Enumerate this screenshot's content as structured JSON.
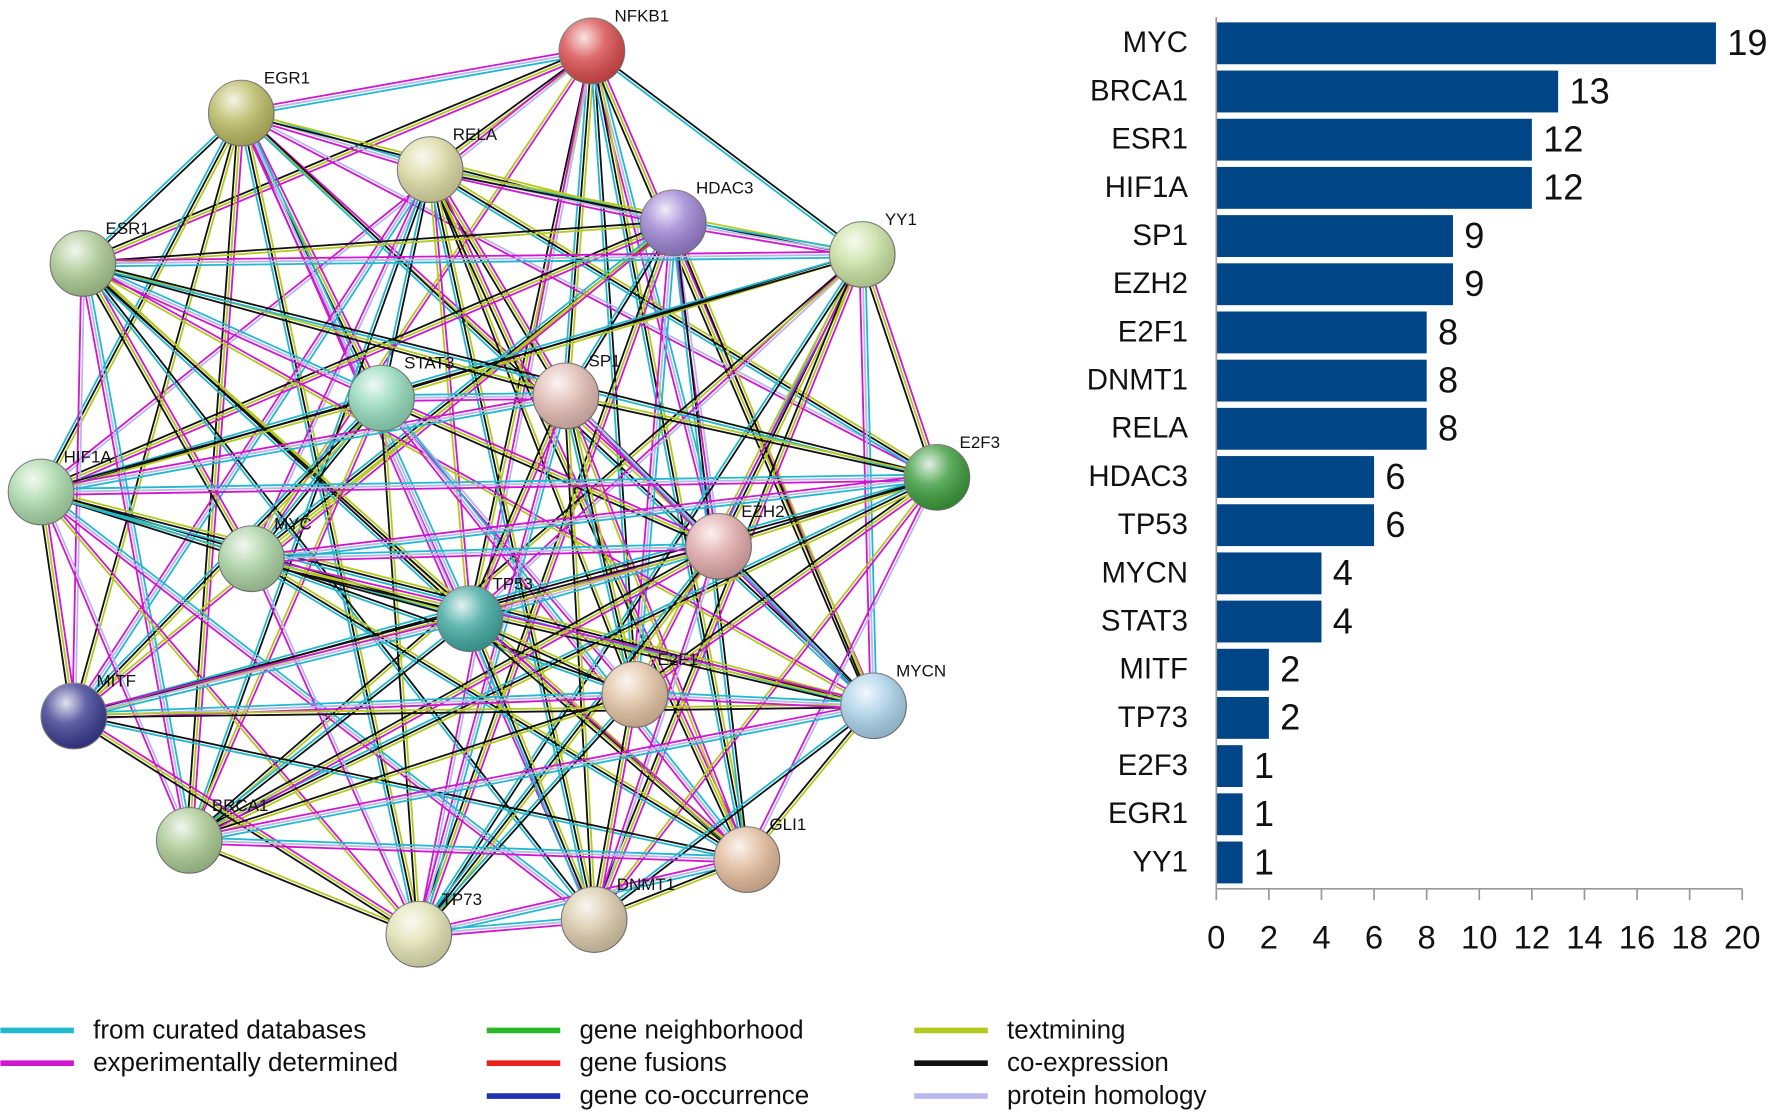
{
  "chart_data": {
    "type": "bar",
    "orientation": "horizontal",
    "categories": [
      "MYC",
      "BRCA1",
      "ESR1",
      "HIF1A",
      "SP1",
      "EZH2",
      "E2F1",
      "DNMT1",
      "RELA",
      "HDAC3",
      "TP53",
      "MYCN",
      "STAT3",
      "MITF",
      "TP73",
      "E2F3",
      "EGR1",
      "YY1"
    ],
    "values": [
      19,
      13,
      12,
      12,
      9,
      9,
      8,
      8,
      8,
      6,
      6,
      4,
      4,
      2,
      2,
      1,
      1,
      1
    ],
    "color": "#004586",
    "xlim": [
      0,
      20
    ],
    "xticks": [
      0,
      2,
      4,
      6,
      8,
      10,
      12,
      14,
      16,
      18,
      20
    ]
  },
  "network": {
    "nodes": [
      "NFKB1",
      "EGR1",
      "RELA",
      "HDAC3",
      "YY1",
      "ESR1",
      "STAT3",
      "SP1",
      "HIF1A",
      "E2F3",
      "MYC",
      "EZH2",
      "TP53",
      "MITF",
      "E2F1",
      "MYCN",
      "BRCA1",
      "GLI1",
      "TP73",
      "DNMT1"
    ],
    "legend": [
      {
        "name": "from curated databases",
        "color": "#22b8cf"
      },
      {
        "name": "experimentally determined",
        "color": "#d017d0"
      },
      {
        "name": "gene neighborhood",
        "color": "#28b828"
      },
      {
        "name": "gene fusions",
        "color": "#e8211c"
      },
      {
        "name": "gene co-occurrence",
        "color": "#2131b0"
      },
      {
        "name": "textmining",
        "color": "#b5c81d"
      },
      {
        "name": "co-expression",
        "color": "#111111"
      },
      {
        "name": "protein homology",
        "color": "#b8b8ec"
      }
    ]
  }
}
